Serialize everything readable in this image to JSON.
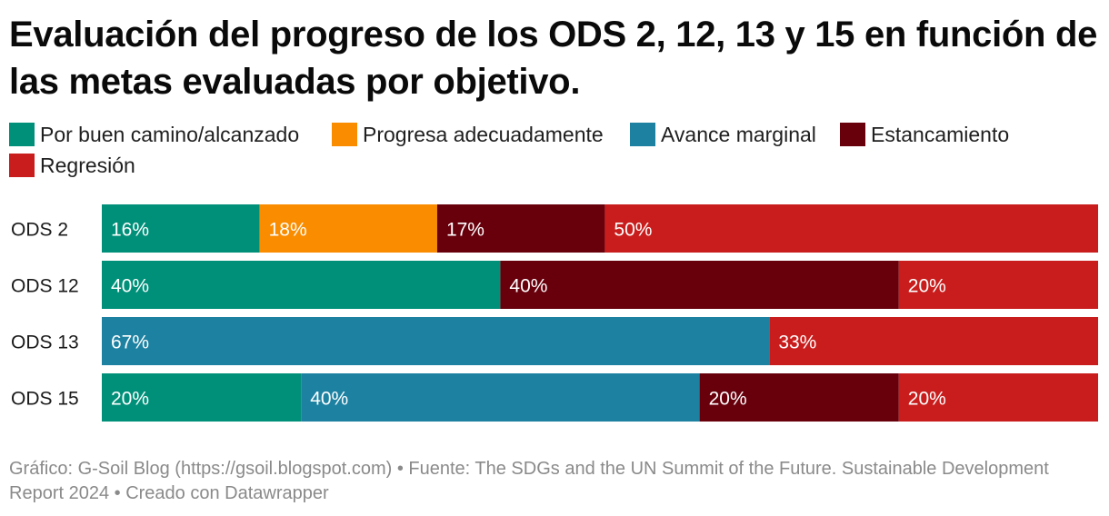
{
  "title": "Evaluación del progreso de los ODS 2, 12, 13 y 15 en función de las metas evaluadas por objetivo.",
  "legend": [
    {
      "label": "Por buen camino/alcanzado",
      "color": "#009079"
    },
    {
      "label": "Progresa adecuadamente",
      "color": "#fa8c00"
    },
    {
      "label": "Avance marginal",
      "color": "#1d81a2"
    },
    {
      "label": "Estancamiento",
      "color": "#68000c"
    },
    {
      "label": "Regresión",
      "color": "#c91d1d"
    }
  ],
  "footer": {
    "credit": "Gráfico: G-Soil Blog (https://gsoil.blogspot.com) • Fuente: The SDGs and the UN Summit of the Future. Sustainable Development Report 2024 • Creado con Datawrapper"
  },
  "chart_data": {
    "type": "bar",
    "orientation": "horizontal",
    "stacked": true,
    "normalized": true,
    "categories": [
      "ODS 2",
      "ODS 12",
      "ODS 13",
      "ODS 15"
    ],
    "series": [
      {
        "name": "Por buen camino/alcanzado",
        "color": "#009079",
        "values": [
          16,
          40,
          0,
          20
        ]
      },
      {
        "name": "Progresa adecuadamente",
        "color": "#fa8c00",
        "values": [
          18,
          0,
          0,
          0
        ]
      },
      {
        "name": "Avance marginal",
        "color": "#1d81a2",
        "values": [
          0,
          0,
          67,
          40
        ]
      },
      {
        "name": "Estancamiento",
        "color": "#68000c",
        "values": [
          17,
          40,
          0,
          20
        ]
      },
      {
        "name": "Regresión",
        "color": "#c91d1d",
        "values": [
          50,
          20,
          33,
          20
        ]
      }
    ],
    "value_suffix": "%",
    "xlim": [
      0,
      100
    ],
    "grid": false,
    "legend_position": "top-left"
  }
}
